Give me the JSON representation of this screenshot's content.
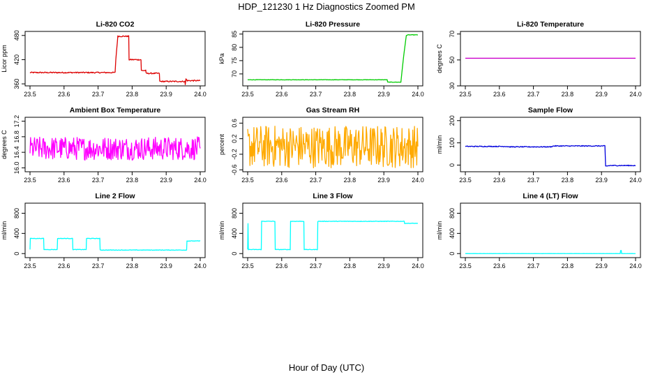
{
  "figure": {
    "title": "HDP_121230  1 Hz Diagnostics Zoomed PM",
    "xlabel": "Hour of Day (UTC)"
  },
  "chart_data": [
    {
      "type": "line",
      "title": "Li-820 CO2",
      "ylabel": "Licor ppm",
      "color": "#dd0000",
      "xlim": [
        23.5,
        24.0
      ],
      "ylim": [
        355,
        490
      ],
      "x_ticks": [
        "23.5",
        "23.6",
        "23.7",
        "23.8",
        "23.9",
        "24.0"
      ],
      "y_ticks": [
        360,
        420,
        480
      ],
      "y_tick_labels": [
        "360",
        "420",
        "480"
      ],
      "noise": 1.5,
      "series": [
        {
          "x": [
            23.5,
            23.75,
            23.752,
            23.758,
            23.759,
            23.79,
            23.791,
            23.826,
            23.827,
            23.84,
            23.841,
            23.88,
            23.881,
            23.955,
            23.956,
            23.958,
            23.962,
            24.0
          ],
          "y": [
            388,
            388,
            420,
            478,
            478,
            478,
            420,
            420,
            393,
            393,
            386,
            386,
            366,
            366,
            358,
            372,
            368,
            368
          ]
        }
      ]
    },
    {
      "type": "line",
      "title": "Li-820 Pressure",
      "ylabel": "kPa",
      "color": "#00cc00",
      "xlim": [
        23.5,
        24.0
      ],
      "ylim": [
        65.5,
        86
      ],
      "x_ticks": [
        "23.5",
        "23.6",
        "23.7",
        "23.8",
        "23.9",
        "24.0"
      ],
      "y_ticks": [
        70,
        75,
        80,
        85
      ],
      "y_tick_labels": [
        "70",
        "75",
        "80",
        "85"
      ],
      "noise": 0.08,
      "series": [
        {
          "x": [
            23.5,
            23.91,
            23.911,
            23.95,
            23.958,
            23.966,
            23.972,
            24.0
          ],
          "y": [
            67.8,
            67.8,
            66.9,
            66.9,
            76.5,
            84.5,
            84.7,
            84.7
          ]
        }
      ]
    },
    {
      "type": "line",
      "title": "Li-820 Temperature",
      "ylabel": "degrees C",
      "color": "#cc00cc",
      "xlim": [
        23.5,
        24.0
      ],
      "ylim": [
        30,
        72
      ],
      "x_ticks": [
        "23.5",
        "23.6",
        "23.7",
        "23.8",
        "23.9",
        "24.0"
      ],
      "y_ticks": [
        30,
        50,
        70
      ],
      "y_tick_labels": [
        "30",
        "50",
        "70"
      ],
      "noise": 0,
      "series": [
        {
          "x": [
            23.5,
            24.0
          ],
          "y": [
            51.3,
            51.3
          ]
        }
      ]
    },
    {
      "type": "line",
      "title": "Ambient Box Temperature",
      "ylabel": "degrees C",
      "color": "#ff00ff",
      "xlim": [
        23.5,
        24.0
      ],
      "ylim": [
        15.9,
        17.3
      ],
      "x_ticks": [
        "23.5",
        "23.6",
        "23.7",
        "23.8",
        "23.9",
        "24.0"
      ],
      "y_ticks": [
        16.0,
        16.4,
        16.8,
        17.2
      ],
      "y_tick_labels": [
        "16.0",
        "16.4",
        "16.8",
        "17.2"
      ],
      "noise": 0.3,
      "series": [
        {
          "x": [
            23.5,
            24.0
          ],
          "y": [
            16.5,
            16.5
          ]
        }
      ]
    },
    {
      "type": "line",
      "title": "Gas Stream RH",
      "ylabel": "percent",
      "color": "#ffaa00",
      "xlim": [
        23.5,
        24.0
      ],
      "ylim": [
        -0.65,
        0.75
      ],
      "x_ticks": [
        "23.5",
        "23.6",
        "23.7",
        "23.8",
        "23.9",
        "24.0"
      ],
      "y_ticks": [
        -0.6,
        -0.2,
        0.2,
        0.6
      ],
      "y_tick_labels": [
        "-0.6",
        "-0.2",
        "0.2",
        "0.6"
      ],
      "noise": 0.55,
      "series": [
        {
          "x": [
            23.5,
            24.0
          ],
          "y": [
            0.0,
            0.0
          ]
        }
      ]
    },
    {
      "type": "line",
      "title": "Sample Flow",
      "ylabel": "ml/min",
      "color": "#0000dd",
      "xlim": [
        23.5,
        24.0
      ],
      "ylim": [
        -30,
        215
      ],
      "x_ticks": [
        "23.5",
        "23.6",
        "23.7",
        "23.8",
        "23.9",
        "24.0"
      ],
      "y_ticks": [
        0,
        100,
        200
      ],
      "y_tick_labels": [
        "0",
        "100",
        "200"
      ],
      "noise": 2,
      "series": [
        {
          "x": [
            23.5,
            23.62,
            23.63,
            23.75,
            23.76,
            23.9,
            23.91,
            23.912,
            23.925,
            24.0
          ],
          "y": [
            84,
            84,
            82,
            82,
            86,
            86,
            86,
            -5,
            -2,
            -2
          ]
        }
      ]
    },
    {
      "type": "line",
      "title": "Line 2 Flow",
      "ylabel": "ml/min",
      "color": "#00ffff",
      "xlim": [
        23.5,
        24.0
      ],
      "ylim": [
        -80,
        1000
      ],
      "x_ticks": [
        "23.5",
        "23.6",
        "23.7",
        "23.8",
        "23.9",
        "24.0"
      ],
      "y_ticks": [
        0,
        400,
        800
      ],
      "y_tick_labels": [
        "0",
        "400",
        "800"
      ],
      "noise": 5,
      "series": [
        {
          "x": [
            23.5,
            23.501,
            23.54,
            23.541,
            23.58,
            23.581,
            23.625,
            23.626,
            23.665,
            23.666,
            23.705,
            23.706,
            23.96,
            23.961,
            24.0
          ],
          "y": [
            80,
            300,
            300,
            80,
            80,
            300,
            300,
            80,
            80,
            300,
            300,
            70,
            70,
            250,
            250
          ]
        }
      ]
    },
    {
      "type": "line",
      "title": "Line 3 Flow",
      "ylabel": "ml/min",
      "color": "#00ffff",
      "xlim": [
        23.5,
        24.0
      ],
      "ylim": [
        -80,
        1000
      ],
      "x_ticks": [
        "23.5",
        "23.6",
        "23.7",
        "23.8",
        "23.9",
        "24.0"
      ],
      "y_ticks": [
        0,
        400,
        800
      ],
      "y_tick_labels": [
        "0",
        "400",
        "800"
      ],
      "noise": 5,
      "series": [
        {
          "x": [
            23.5,
            23.501,
            23.502,
            23.54,
            23.541,
            23.58,
            23.581,
            23.625,
            23.626,
            23.665,
            23.666,
            23.705,
            23.706,
            23.96,
            23.961,
            24.0
          ],
          "y": [
            80,
            600,
            80,
            80,
            640,
            640,
            80,
            80,
            640,
            640,
            80,
            80,
            640,
            640,
            600,
            600
          ]
        }
      ]
    },
    {
      "type": "line",
      "title": "Line 4 (LT) Flow",
      "ylabel": "ml/min",
      "color": "#00ffff",
      "xlim": [
        23.5,
        24.0
      ],
      "ylim": [
        -80,
        1000
      ],
      "x_ticks": [
        "23.5",
        "23.6",
        "23.7",
        "23.8",
        "23.9",
        "24.0"
      ],
      "y_ticks": [
        0,
        400,
        800
      ],
      "y_tick_labels": [
        "0",
        "400",
        "800"
      ],
      "noise": 1,
      "series": [
        {
          "x": [
            23.5,
            23.955,
            23.956,
            23.958,
            23.959,
            24.0
          ],
          "y": [
            0,
            0,
            60,
            60,
            0,
            0
          ]
        }
      ]
    }
  ]
}
